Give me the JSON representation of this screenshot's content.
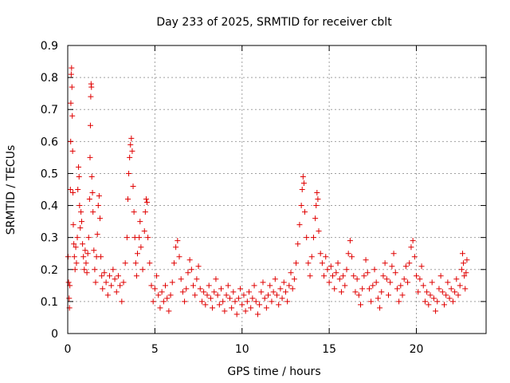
{
  "chart_data": {
    "type": "scatter",
    "title": "Day 233 of 2025, SRMTID for receiver cblt",
    "xlabel": "GPS time / hours",
    "ylabel": "SRMTID / TECUs",
    "xlim": [
      0,
      24
    ],
    "ylim": [
      0,
      0.9
    ],
    "xticks": [
      0,
      5,
      10,
      15,
      20
    ],
    "xtick_labels": [
      "0",
      "5",
      "10",
      "15",
      "20"
    ],
    "yticks": [
      0,
      0.1,
      0.2,
      0.3,
      0.4,
      0.5,
      0.6,
      0.7,
      0.8,
      0.9
    ],
    "ytick_labels": [
      "0",
      "0.1",
      "0.2",
      "0.3",
      "0.4",
      "0.5",
      "0.6",
      "0.7",
      "0.8",
      "0.9"
    ],
    "grid": true,
    "marker": "+",
    "color": "#e00000",
    "series": [
      {
        "name": "SRMTID",
        "points": [
          [
            0.02,
            0.24
          ],
          [
            0.05,
            0.16
          ],
          [
            0.08,
            0.11
          ],
          [
            0.1,
            0.08
          ],
          [
            0.12,
            0.15
          ],
          [
            0.15,
            0.45
          ],
          [
            0.17,
            0.6
          ],
          [
            0.18,
            0.72
          ],
          [
            0.2,
            0.81
          ],
          [
            0.22,
            0.83
          ],
          [
            0.24,
            0.77
          ],
          [
            0.26,
            0.68
          ],
          [
            0.28,
            0.57
          ],
          [
            0.3,
            0.44
          ],
          [
            0.32,
            0.34
          ],
          [
            0.35,
            0.28
          ],
          [
            0.38,
            0.24
          ],
          [
            0.42,
            0.2
          ],
          [
            0.46,
            0.27
          ],
          [
            0.5,
            0.22
          ],
          [
            0.55,
            0.3
          ],
          [
            0.58,
            0.45
          ],
          [
            0.62,
            0.52
          ],
          [
            0.65,
            0.49
          ],
          [
            0.68,
            0.4
          ],
          [
            0.72,
            0.33
          ],
          [
            0.76,
            0.38
          ],
          [
            0.8,
            0.35
          ],
          [
            0.85,
            0.28
          ],
          [
            0.9,
            0.24
          ],
          [
            0.95,
            0.2
          ],
          [
            1.0,
            0.26
          ],
          [
            1.05,
            0.22
          ],
          [
            1.1,
            0.19
          ],
          [
            1.15,
            0.25
          ],
          [
            1.2,
            0.3
          ],
          [
            1.25,
            0.42
          ],
          [
            1.28,
            0.55
          ],
          [
            1.3,
            0.65
          ],
          [
            1.32,
            0.74
          ],
          [
            1.34,
            0.78
          ],
          [
            1.36,
            0.77
          ],
          [
            1.38,
            0.49
          ],
          [
            1.42,
            0.44
          ],
          [
            1.45,
            0.38
          ],
          [
            1.5,
            0.26
          ],
          [
            1.55,
            0.2
          ],
          [
            1.6,
            0.16
          ],
          [
            1.65,
            0.24
          ],
          [
            1.7,
            0.31
          ],
          [
            1.75,
            0.4
          ],
          [
            1.8,
            0.43
          ],
          [
            1.85,
            0.36
          ],
          [
            1.9,
            0.24
          ],
          [
            1.95,
            0.18
          ],
          [
            2.0,
            0.14
          ],
          [
            2.1,
            0.19
          ],
          [
            2.2,
            0.16
          ],
          [
            2.3,
            0.12
          ],
          [
            2.4,
            0.18
          ],
          [
            2.5,
            0.15
          ],
          [
            2.6,
            0.2
          ],
          [
            2.7,
            0.17
          ],
          [
            2.8,
            0.13
          ],
          [
            2.9,
            0.18
          ],
          [
            3.0,
            0.15
          ],
          [
            3.1,
            0.1
          ],
          [
            3.2,
            0.16
          ],
          [
            3.3,
            0.22
          ],
          [
            3.4,
            0.3
          ],
          [
            3.45,
            0.42
          ],
          [
            3.5,
            0.5
          ],
          [
            3.55,
            0.55
          ],
          [
            3.6,
            0.59
          ],
          [
            3.65,
            0.61
          ],
          [
            3.7,
            0.57
          ],
          [
            3.75,
            0.46
          ],
          [
            3.8,
            0.38
          ],
          [
            3.85,
            0.3
          ],
          [
            3.9,
            0.22
          ],
          [
            3.95,
            0.18
          ],
          [
            4.0,
            0.25
          ],
          [
            4.1,
            0.3
          ],
          [
            4.15,
            0.35
          ],
          [
            4.2,
            0.27
          ],
          [
            4.3,
            0.2
          ],
          [
            4.4,
            0.32
          ],
          [
            4.45,
            0.38
          ],
          [
            4.5,
            0.42
          ],
          [
            4.55,
            0.41
          ],
          [
            4.6,
            0.3
          ],
          [
            4.7,
            0.22
          ],
          [
            4.8,
            0.15
          ],
          [
            4.9,
            0.1
          ],
          [
            5.0,
            0.14
          ],
          [
            5.1,
            0.18
          ],
          [
            5.2,
            0.12
          ],
          [
            5.3,
            0.08
          ],
          [
            5.4,
            0.13
          ],
          [
            5.5,
            0.1
          ],
          [
            5.6,
            0.15
          ],
          [
            5.7,
            0.11
          ],
          [
            5.8,
            0.07
          ],
          [
            5.9,
            0.12
          ],
          [
            6.0,
            0.16
          ],
          [
            6.1,
            0.22
          ],
          [
            6.2,
            0.27
          ],
          [
            6.3,
            0.29
          ],
          [
            6.4,
            0.24
          ],
          [
            6.5,
            0.17
          ],
          [
            6.6,
            0.13
          ],
          [
            6.7,
            0.1
          ],
          [
            6.8,
            0.14
          ],
          [
            6.9,
            0.19
          ],
          [
            7.0,
            0.23
          ],
          [
            7.1,
            0.2
          ],
          [
            7.2,
            0.15
          ],
          [
            7.3,
            0.12
          ],
          [
            7.4,
            0.17
          ],
          [
            7.5,
            0.21
          ],
          [
            7.6,
            0.14
          ],
          [
            7.7,
            0.1
          ],
          [
            7.8,
            0.13
          ],
          [
            7.9,
            0.09
          ],
          [
            8.0,
            0.12
          ],
          [
            8.1,
            0.15
          ],
          [
            8.2,
            0.11
          ],
          [
            8.3,
            0.08
          ],
          [
            8.4,
            0.13
          ],
          [
            8.5,
            0.17
          ],
          [
            8.6,
            0.12
          ],
          [
            8.7,
            0.09
          ],
          [
            8.8,
            0.14
          ],
          [
            8.9,
            0.1
          ],
          [
            9.0,
            0.07
          ],
          [
            9.1,
            0.12
          ],
          [
            9.2,
            0.15
          ],
          [
            9.3,
            0.11
          ],
          [
            9.4,
            0.08
          ],
          [
            9.5,
            0.13
          ],
          [
            9.6,
            0.1
          ],
          [
            9.7,
            0.06
          ],
          [
            9.8,
            0.11
          ],
          [
            9.9,
            0.14
          ],
          [
            10.0,
            0.09
          ],
          [
            10.1,
            0.12
          ],
          [
            10.2,
            0.07
          ],
          [
            10.3,
            0.1
          ],
          [
            10.4,
            0.13
          ],
          [
            10.5,
            0.08
          ],
          [
            10.6,
            0.11
          ],
          [
            10.7,
            0.15
          ],
          [
            10.8,
            0.1
          ],
          [
            10.9,
            0.06
          ],
          [
            11.0,
            0.09
          ],
          [
            11.1,
            0.13
          ],
          [
            11.2,
            0.16
          ],
          [
            11.3,
            0.11
          ],
          [
            11.4,
            0.08
          ],
          [
            11.5,
            0.12
          ],
          [
            11.6,
            0.15
          ],
          [
            11.7,
            0.1
          ],
          [
            11.8,
            0.13
          ],
          [
            11.9,
            0.17
          ],
          [
            12.0,
            0.12
          ],
          [
            12.1,
            0.09
          ],
          [
            12.2,
            0.14
          ],
          [
            12.3,
            0.11
          ],
          [
            12.4,
            0.16
          ],
          [
            12.5,
            0.13
          ],
          [
            12.6,
            0.1
          ],
          [
            12.7,
            0.15
          ],
          [
            12.8,
            0.19
          ],
          [
            12.9,
            0.14
          ],
          [
            13.0,
            0.17
          ],
          [
            13.1,
            0.22
          ],
          [
            13.2,
            0.28
          ],
          [
            13.3,
            0.34
          ],
          [
            13.4,
            0.4
          ],
          [
            13.45,
            0.45
          ],
          [
            13.5,
            0.49
          ],
          [
            13.55,
            0.47
          ],
          [
            13.6,
            0.38
          ],
          [
            13.7,
            0.3
          ],
          [
            13.8,
            0.22
          ],
          [
            13.9,
            0.18
          ],
          [
            14.0,
            0.24
          ],
          [
            14.1,
            0.3
          ],
          [
            14.2,
            0.36
          ],
          [
            14.25,
            0.4
          ],
          [
            14.3,
            0.44
          ],
          [
            14.35,
            0.42
          ],
          [
            14.4,
            0.32
          ],
          [
            14.5,
            0.25
          ],
          [
            14.6,
            0.22
          ],
          [
            14.7,
            0.18
          ],
          [
            14.8,
            0.24
          ],
          [
            14.9,
            0.2
          ],
          [
            15.0,
            0.16
          ],
          [
            15.1,
            0.21
          ],
          [
            15.2,
            0.18
          ],
          [
            15.3,
            0.14
          ],
          [
            15.4,
            0.19
          ],
          [
            15.5,
            0.22
          ],
          [
            15.6,
            0.17
          ],
          [
            15.7,
            0.13
          ],
          [
            15.8,
            0.18
          ],
          [
            15.9,
            0.15
          ],
          [
            16.0,
            0.2
          ],
          [
            16.1,
            0.25
          ],
          [
            16.2,
            0.29
          ],
          [
            16.3,
            0.24
          ],
          [
            16.4,
            0.18
          ],
          [
            16.5,
            0.13
          ],
          [
            16.6,
            0.17
          ],
          [
            16.7,
            0.12
          ],
          [
            16.8,
            0.09
          ],
          [
            16.9,
            0.14
          ],
          [
            17.0,
            0.18
          ],
          [
            17.1,
            0.23
          ],
          [
            17.2,
            0.19
          ],
          [
            17.3,
            0.14
          ],
          [
            17.4,
            0.1
          ],
          [
            17.5,
            0.15
          ],
          [
            17.6,
            0.2
          ],
          [
            17.7,
            0.16
          ],
          [
            17.8,
            0.11
          ],
          [
            17.9,
            0.08
          ],
          [
            18.0,
            0.13
          ],
          [
            18.1,
            0.18
          ],
          [
            18.2,
            0.22
          ],
          [
            18.3,
            0.17
          ],
          [
            18.4,
            0.12
          ],
          [
            18.5,
            0.16
          ],
          [
            18.6,
            0.21
          ],
          [
            18.7,
            0.25
          ],
          [
            18.8,
            0.19
          ],
          [
            18.9,
            0.14
          ],
          [
            19.0,
            0.1
          ],
          [
            19.1,
            0.15
          ],
          [
            19.2,
            0.12
          ],
          [
            19.3,
            0.17
          ],
          [
            19.4,
            0.21
          ],
          [
            19.5,
            0.16
          ],
          [
            19.6,
            0.22
          ],
          [
            19.7,
            0.27
          ],
          [
            19.8,
            0.29
          ],
          [
            19.9,
            0.24
          ],
          [
            20.0,
            0.18
          ],
          [
            20.1,
            0.13
          ],
          [
            20.2,
            0.17
          ],
          [
            20.3,
            0.21
          ],
          [
            20.4,
            0.15
          ],
          [
            20.5,
            0.1
          ],
          [
            20.6,
            0.13
          ],
          [
            20.7,
            0.09
          ],
          [
            20.8,
            0.12
          ],
          [
            20.9,
            0.16
          ],
          [
            21.0,
            0.11
          ],
          [
            21.1,
            0.07
          ],
          [
            21.2,
            0.1
          ],
          [
            21.3,
            0.14
          ],
          [
            21.4,
            0.18
          ],
          [
            21.5,
            0.13
          ],
          [
            21.6,
            0.09
          ],
          [
            21.7,
            0.12
          ],
          [
            21.8,
            0.16
          ],
          [
            21.9,
            0.11
          ],
          [
            22.0,
            0.14
          ],
          [
            22.1,
            0.1
          ],
          [
            22.2,
            0.13
          ],
          [
            22.3,
            0.17
          ],
          [
            22.4,
            0.12
          ],
          [
            22.5,
            0.15
          ],
          [
            22.6,
            0.2
          ],
          [
            22.65,
            0.25
          ],
          [
            22.7,
            0.22
          ],
          [
            22.75,
            0.18
          ],
          [
            22.8,
            0.14
          ],
          [
            22.85,
            0.19
          ],
          [
            22.9,
            0.23
          ]
        ]
      }
    ]
  }
}
